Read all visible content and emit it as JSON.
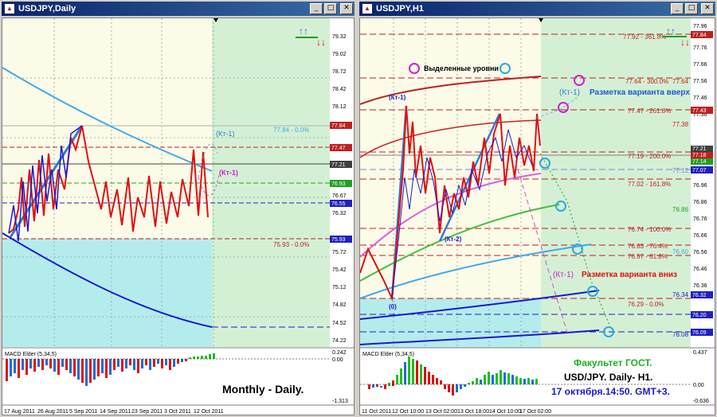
{
  "left_window": {
    "title": "USDJPY,Daily",
    "price_axis": [
      "79.32",
      "79.02",
      "78.72",
      "78.42",
      "78.12",
      "77.84",
      "77.47",
      "77.21",
      "76.93",
      "76.67",
      "76.55",
      "76.32",
      "75.93",
      "75.72",
      "75.42",
      "75.12",
      "74.82",
      "74.52",
      "74.22"
    ],
    "price_tags": {
      "tag1": "77.84",
      "tag2": "77.47",
      "tag3": "77.21",
      "tag4": "76.93",
      "tag5": "76.55",
      "tag6": "75.93"
    },
    "level_labels": {
      "fib1": "77.84 - 0.0%",
      "fib2": "75.93 - 0.0%"
    },
    "kt_labels": {
      "kt_up": "(Кт-1)",
      "kt_down": "(Кт-1)"
    },
    "macd_title": "MACD Elder (5,34,5)",
    "macd_axis": [
      "0.242",
      "0.00",
      "-1.313"
    ],
    "dates": [
      "17 Aug 2011",
      "26 Aug 2011",
      "5 Sep 2011",
      "14 Sep 2011",
      "23 Sep 2011",
      "3 Oct 2011",
      "12 Oct 2011"
    ],
    "caption": "Monthly - Daily."
  },
  "right_window": {
    "title": "USDJPY,H1",
    "price_axis": [
      "77.96",
      "77.84",
      "77.76",
      "77.66",
      "77.56",
      "77.46",
      "77.36",
      "77.26",
      "77.16",
      "77.06",
      "76.96",
      "76.86",
      "76.76",
      "76.66",
      "76.56",
      "76.46",
      "76.36",
      "76.26",
      "76.16",
      "76.06"
    ],
    "price_tags": {
      "r1": "77.84",
      "r2": "77.43",
      "r3": "77.21",
      "r4": "77.18",
      "r5": "77.14",
      "r6": "77.07",
      "r7": "76.32",
      "r8": "76.20",
      "r9": "76.09"
    },
    "level_labels": {
      "l1": "77.92 - 361.8%",
      "l2": "77.64 - 300.0%",
      "l2b": "77.64",
      "l3": "77.47 - 261.8%",
      "l4": "77.38",
      "l5": "77.19 - 200.0%",
      "l6": "77.12",
      "l7": "77.02 - 161.8%",
      "l8": "76.86",
      "l9": "76.74 - 100.0%",
      "l10": "76.63 - 76.4%",
      "l11": "76.60",
      "l12": "76.57 - 61.8%",
      "l13": "76.34",
      "l14": "76.29 - 0.0%",
      "l15": "76.08"
    },
    "annotations": {
      "highlighted": "Выделенные уровни",
      "markup_up": "Разметка варианта вверх",
      "markup_down": "Разметка варианта вниз",
      "kt1_top": "(Кт-1)",
      "kt1_up": "(Кт-1)",
      "kt1_down": "(Кт-1)",
      "kt2": "(Кт-2)",
      "zero": "(0)"
    },
    "macd_title": "MACD Elder (5,34,5)",
    "macd_axis": [
      "0.437",
      "0.00",
      "-0.636"
    ],
    "dates": [
      "11 Oct 2011",
      "12 Oct 10:00",
      "13 Oct 02:00",
      "13 Oct 18:00",
      "14 Oct 10:00",
      "17 Oct 02:00"
    ],
    "caption_lines": [
      "Факультет ГОСТ.",
      "USD/JPY. Daily- H1.",
      "17 октября.14:50. GMT+3."
    ]
  },
  "colors": {
    "up_arrow": "#1f6fe0",
    "down_arrow": "#e01010",
    "zigzag_red": "#e01010",
    "zigzag_blue": "#1a1ad0"
  }
}
